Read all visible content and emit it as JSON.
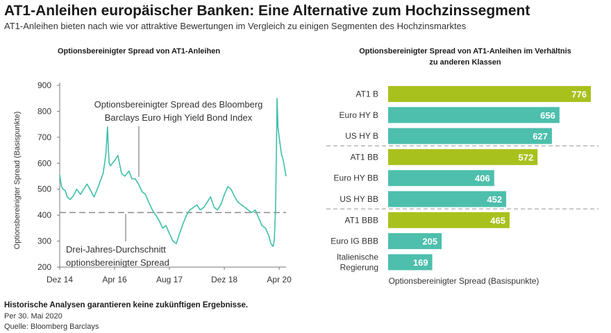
{
  "header": {
    "title": "AT1-Anleihen europäischer Banken: Eine Alternative zum Hochzinssegment",
    "subtitle": "AT1-Anleihen bieten nach wie vor attraktive Bewertungen im Vergleich zu einigen Segmenten des Hochzinsmarktes"
  },
  "footer": {
    "disclaimer": "Historische Analysen garantieren keine zukünftigen Ergebnisse.",
    "date": "Per 30. Mai 2020",
    "source": "Quelle: Bloomberg Barclays"
  },
  "colors": {
    "line": "#3dbfa9",
    "at1_bar": "#a9c11d",
    "other_bar": "#4dbfac",
    "average_line": "#888888",
    "separator": "#aaaaaa"
  },
  "chart_data": [
    {
      "type": "line",
      "title": "Optionsbereinigter Spread von AT1-Anleihen",
      "ylabel": "Optionsbereinigter Spread (Basispunkte)",
      "xlabel": "",
      "ylim": [
        200,
        900
      ],
      "yticks": [
        200,
        300,
        400,
        500,
        600,
        700,
        800,
        900
      ],
      "xlim": [
        2014.917,
        2020.417
      ],
      "xticks": [
        {
          "label": "Dez 14",
          "value": 2014.917
        },
        {
          "label": "Apr 16",
          "value": 2016.25
        },
        {
          "label": "Aug 17",
          "value": 2017.583
        },
        {
          "label": "Dez 18",
          "value": 2018.917
        },
        {
          "label": "Apr 20",
          "value": 2020.25
        }
      ],
      "series": [
        {
          "name": "Optionsbereinigter Spread von AT1-Anleihen",
          "x": [
            2014.917,
            2014.96,
            2015.0,
            2015.05,
            2015.1,
            2015.17,
            2015.25,
            2015.33,
            2015.42,
            2015.5,
            2015.58,
            2015.67,
            2015.75,
            2015.83,
            2015.9,
            2015.97,
            2016.0,
            2016.04,
            2016.08,
            2016.1,
            2016.12,
            2016.15,
            2016.2,
            2016.25,
            2016.33,
            2016.42,
            2016.5,
            2016.55,
            2016.6,
            2016.67,
            2016.75,
            2016.83,
            2016.92,
            2017.0,
            2017.08,
            2017.17,
            2017.25,
            2017.33,
            2017.42,
            2017.5,
            2017.58,
            2017.67,
            2017.75,
            2017.83,
            2017.92,
            2018.0,
            2018.08,
            2018.17,
            2018.25,
            2018.33,
            2018.42,
            2018.5,
            2018.58,
            2018.67,
            2018.75,
            2018.83,
            2018.92,
            2019.0,
            2019.08,
            2019.17,
            2019.25,
            2019.33,
            2019.42,
            2019.5,
            2019.58,
            2019.67,
            2019.75,
            2019.83,
            2019.92,
            2020.0,
            2020.05,
            2020.1,
            2020.13,
            2020.16,
            2020.18,
            2020.2,
            2020.22,
            2020.25,
            2020.3,
            2020.35,
            2020.417
          ],
          "values": [
            555,
            510,
            500,
            495,
            470,
            460,
            475,
            500,
            480,
            500,
            520,
            495,
            470,
            500,
            530,
            560,
            590,
            640,
            740,
            650,
            600,
            590,
            600,
            610,
            630,
            560,
            550,
            560,
            570,
            540,
            540,
            520,
            490,
            480,
            450,
            420,
            400,
            380,
            350,
            360,
            330,
            300,
            290,
            330,
            370,
            400,
            420,
            430,
            440,
            420,
            430,
            450,
            470,
            430,
            420,
            440,
            480,
            510,
            500,
            470,
            450,
            440,
            430,
            420,
            410,
            420,
            390,
            360,
            350,
            320,
            290,
            280,
            300,
            420,
            620,
            850,
            740,
            700,
            640,
            610,
            550
          ]
        }
      ],
      "annotations": {
        "hy_line1": "Optionsbereinigter Spread des Bloomberg",
        "hy_line2": "Barclays Euro High Yield Bond Index",
        "avg_line1": "Drei-Jahres-Durchschnitt",
        "avg_line2": "optionsbereinigter Spread",
        "average_value": 410
      }
    },
    {
      "type": "bar",
      "orientation": "horizontal",
      "title_line1": "Optionsbereinigter Spread von AT1-Anleihen im Verhältnis",
      "title_line2": "zu anderen Klassen",
      "xlabel": "Optionsbereinigter Spread (Basispunkte)",
      "xlim": [
        0,
        800
      ],
      "categories": [
        {
          "lines": [
            "AT1 B"
          ],
          "at1": true
        },
        {
          "lines": [
            "Euro HY B"
          ],
          "at1": false
        },
        {
          "lines": [
            "US HY B"
          ],
          "at1": false
        },
        {
          "lines": [
            "AT1 BB"
          ],
          "at1": true
        },
        {
          "lines": [
            "Euro HY BB"
          ],
          "at1": false
        },
        {
          "lines": [
            "US HY BB"
          ],
          "at1": false
        },
        {
          "lines": [
            "AT1 BBB"
          ],
          "at1": true
        },
        {
          "lines": [
            "Euro IG BBB"
          ],
          "at1": false
        },
        {
          "lines": [
            "Italienische",
            "Regierung"
          ],
          "at1": false
        }
      ],
      "values": [
        776,
        656,
        627,
        572,
        406,
        452,
        465,
        205,
        169
      ]
    }
  ]
}
